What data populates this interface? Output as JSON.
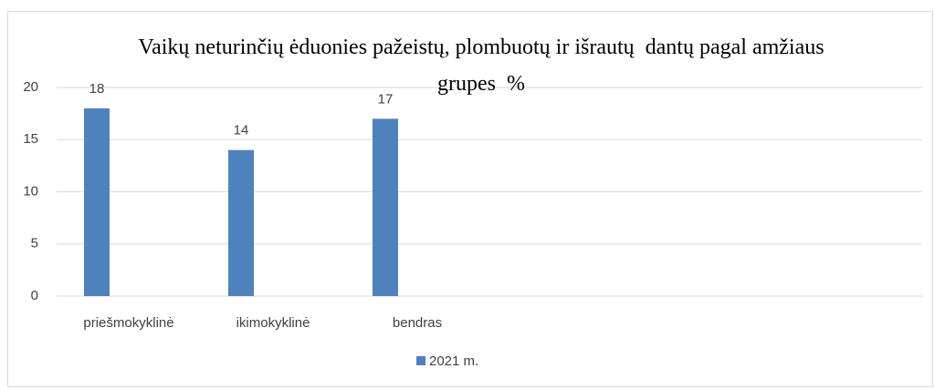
{
  "chart_data": {
    "type": "bar",
    "title": "Vaikų neturinčių ėduonies pažeistų, plombuotų ir išrautų  dantų pagal amžiaus grupes  %",
    "categories": [
      "priešmokyklinė",
      "ikimokyklinė",
      "bendras",
      null,
      null,
      null
    ],
    "series": [
      {
        "name": "2021 m.",
        "color": "#4f81bd",
        "values": [
          18,
          14,
          17,
          null,
          null,
          null
        ]
      }
    ],
    "ylim": [
      0,
      20
    ],
    "yticks": [
      0,
      5,
      10,
      15,
      20
    ],
    "grid": true,
    "legend": "bottom"
  }
}
